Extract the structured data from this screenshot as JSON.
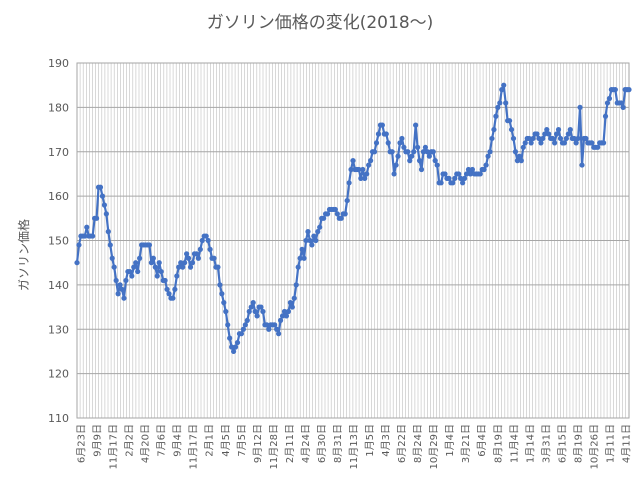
{
  "chart_data": {
    "type": "line",
    "title": "ガソリン価格の変化(2018～)",
    "xlabel": "",
    "ylabel": "ガソリン価格",
    "ylim": [
      110,
      190
    ],
    "yticks": [
      110,
      120,
      130,
      140,
      150,
      160,
      170,
      180,
      190
    ],
    "grid": true,
    "legend": "none",
    "colors": {
      "series": "#4472C4",
      "grid_major": "#a6a6a6",
      "grid_minor": "#bfbfbf",
      "background": "#ffffff"
    },
    "xtick_labels": [
      "6月23日",
      "9月9日",
      "11月17日",
      "2月2日",
      "4月20日",
      "7月6日",
      "9月4日",
      "11月17日",
      "2月1日",
      "4月5日",
      "7月5日",
      "9月12日",
      "11月28日",
      "2月11日",
      "4月24日",
      "6月30日",
      "8月31日",
      "11月13日",
      "1月5日",
      "4月3日",
      "6月22日",
      "8月24日",
      "10月29日",
      "1月4日",
      "3月21日",
      "6月4日",
      "8月19日",
      "11月4日",
      "1月14日",
      "3月31日",
      "6月15日",
      "8月19日",
      "10月26日",
      "1月11日",
      "4月11日"
    ],
    "series": [
      {
        "name": "",
        "values": [
          145,
          149,
          151,
          151,
          151,
          153,
          151,
          151,
          151,
          155,
          155,
          162,
          162,
          160,
          158,
          156,
          152,
          149,
          146,
          144,
          141,
          138,
          140,
          139,
          137,
          141,
          143,
          143,
          142,
          144,
          145,
          143,
          146,
          149,
          149,
          149,
          149,
          149,
          145,
          146,
          144,
          142,
          145,
          143,
          141,
          141,
          139,
          138,
          137,
          137,
          139,
          142,
          144,
          145,
          144,
          145,
          147,
          146,
          144,
          145,
          147,
          147,
          146,
          148,
          150,
          151,
          151,
          150,
          148,
          146,
          146,
          144,
          144,
          140,
          138,
          136,
          134,
          131,
          128,
          126,
          125,
          126,
          127,
          129,
          129,
          130,
          131,
          132,
          134,
          135,
          136,
          134,
          133,
          135,
          135,
          134,
          131,
          131,
          130,
          131,
          131,
          131,
          130,
          129,
          132,
          133,
          134,
          133,
          134,
          136,
          135,
          137,
          140,
          144,
          146,
          148,
          146,
          150,
          152,
          150,
          149,
          151,
          150,
          152,
          153,
          155,
          155,
          156,
          156,
          157,
          157,
          157,
          157,
          156,
          155,
          155,
          156,
          156,
          159,
          163,
          166,
          168,
          166,
          166,
          166,
          164,
          166,
          164,
          165,
          167,
          168,
          170,
          170,
          172,
          174,
          176,
          176,
          174,
          174,
          172,
          170,
          170,
          165,
          167,
          169,
          172,
          173,
          171,
          170,
          170,
          168,
          169,
          170,
          176,
          171,
          168,
          166,
          170,
          171,
          170,
          169,
          170,
          170,
          168,
          167,
          163,
          163,
          165,
          165,
          164,
          164,
          163,
          163,
          164,
          165,
          165,
          164,
          163,
          164,
          165,
          166,
          165,
          166,
          165,
          165,
          165,
          165,
          166,
          166,
          167,
          169,
          170,
          173,
          175,
          178,
          180,
          181,
          184,
          185,
          181,
          177,
          177,
          175,
          173,
          170,
          168,
          169,
          168,
          171,
          172,
          173,
          173,
          172,
          173,
          174,
          174,
          173,
          172,
          173,
          174,
          175,
          174,
          173,
          173,
          172,
          174,
          175,
          173,
          172,
          172,
          173,
          174,
          175,
          173,
          173,
          172,
          173,
          180,
          167,
          173,
          173,
          172,
          172,
          172,
          171,
          171,
          171,
          172,
          172,
          172,
          178,
          181,
          182,
          184,
          184,
          184,
          181,
          181,
          181,
          180,
          184,
          184,
          184
        ]
      }
    ]
  }
}
